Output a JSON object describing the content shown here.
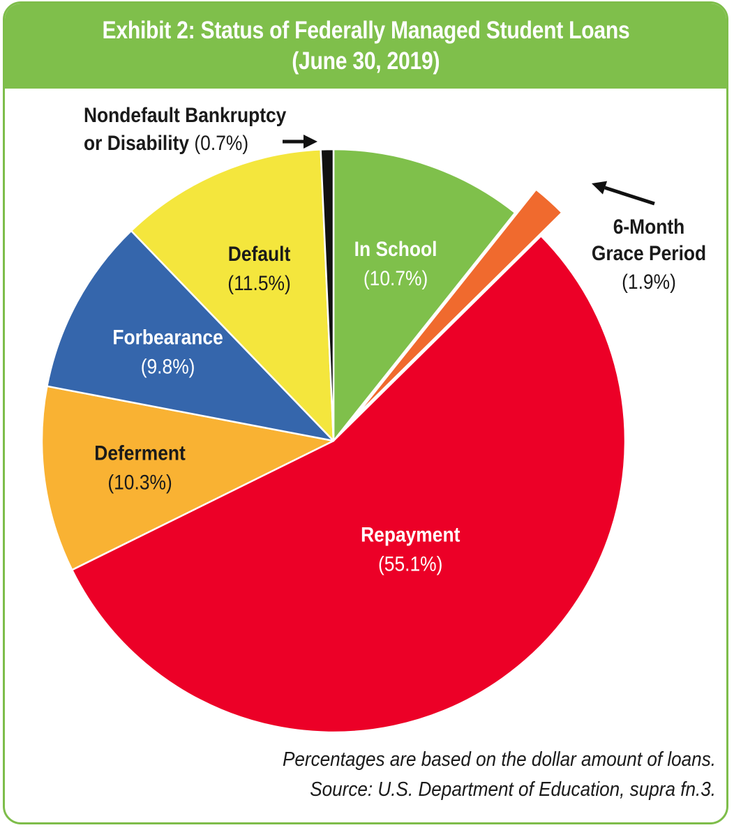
{
  "chart_data": {
    "type": "pie",
    "title": "Exhibit 2: Status of Federally Managed Student Loans",
    "subtitle": "(June 30, 2019)",
    "slices": [
      {
        "name": "In School",
        "value": 10.7,
        "display": "(10.7%)",
        "color": "#7fc04b",
        "text_color": "#ffffff",
        "exploded": false
      },
      {
        "name": "6-Month Grace Period",
        "value": 1.9,
        "display": "(1.9%)",
        "color": "#f06a2e",
        "text_color": "#1a1a1a",
        "exploded": true
      },
      {
        "name": "Repayment",
        "value": 55.1,
        "display": "(55.1%)",
        "color": "#ec0027",
        "text_color": "#ffffff",
        "exploded": false
      },
      {
        "name": "Deferment",
        "value": 10.3,
        "display": "(10.3%)",
        "color": "#f9b233",
        "text_color": "#1a1a1a",
        "exploded": false
      },
      {
        "name": "Forbearance",
        "value": 9.8,
        "display": "(9.8%)",
        "color": "#3566ac",
        "text_color": "#ffffff",
        "exploded": false
      },
      {
        "name": "Default",
        "value": 11.5,
        "display": "(11.5%)",
        "color": "#f4e63d",
        "text_color": "#1a1a1a",
        "exploded": false
      },
      {
        "name": "Nondefault Bankruptcy or Disability",
        "value": 0.7,
        "display": "(0.7%)",
        "color": "#111111",
        "text_color": "#1a1a1a",
        "exploded": false
      }
    ],
    "label_lines": {
      "grace": [
        "6-Month",
        "Grace Period",
        "(1.9%)"
      ],
      "nondefault": [
        "Nondefault Bankruptcy",
        "or Disability"
      ]
    },
    "notes": [
      "Percentages are based on the dollar amount of loans.",
      "Source: U.S. Department of Education, supra fn.3."
    ]
  },
  "colors": {
    "frame_green": "#7ebd4a",
    "header_green": "#7fbf4b",
    "header_text": "#ffffff"
  }
}
